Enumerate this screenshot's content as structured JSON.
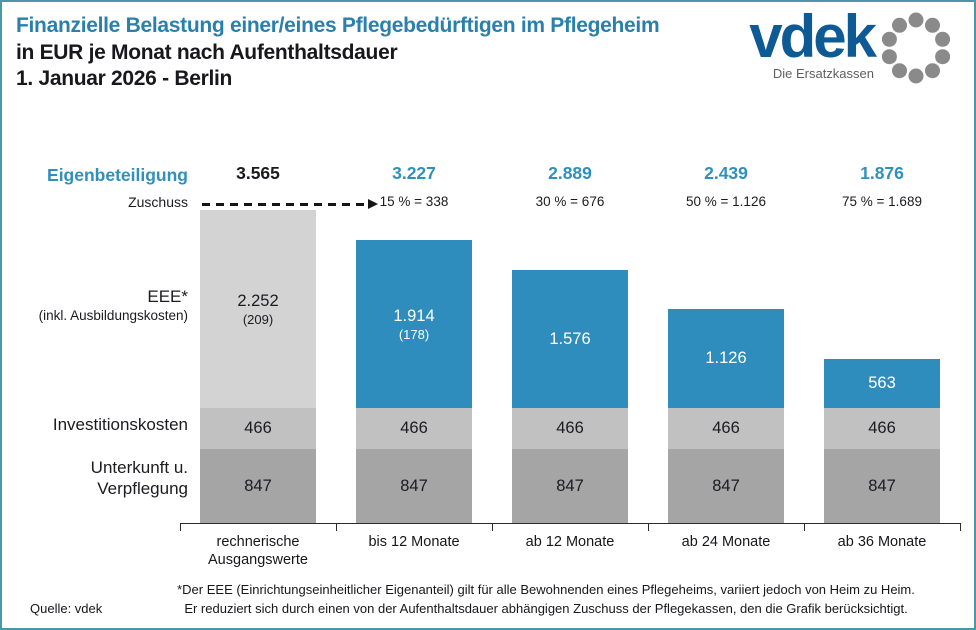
{
  "header": {
    "title_line1": "Finanzielle Belastung einer/eines Pflegebedürftigen im Pflegeheim",
    "title_line2": "in EUR je Monat nach Aufenthaltsdauer",
    "title_line3": "1. Januar 2026 - Berlin"
  },
  "logo": {
    "wordmark": "vdek",
    "tagline": "Die Ersatzkassen"
  },
  "row_labels": {
    "eigenbeteiligung": "Eigenbeteiligung",
    "zuschuss": "Zuschuss",
    "eee": "EEE*",
    "eee_sub": "(inkl. Ausbildungskosten)",
    "investitionskosten": "Investitionskosten",
    "unterkunft_line1": "Unterkunft u.",
    "unterkunft_line2": "Verpflegung"
  },
  "footer": {
    "source": "Quelle: vdek",
    "footnote_line1": "*Der EEE (Einrichtungseinheitlicher Eigenanteil) gilt für alle Bewohnenden eines Pflegeheims, variiert jedoch von Heim zu Heim.",
    "footnote_line2": "Er reduziert sich durch einen von der Aufenthaltsdauer abhängigen Zuschuss der Pflegekassen, den die Grafik berücksichtigt."
  },
  "colors": {
    "accent_blue": "#2f8dbd",
    "total_blue": "#3090bd",
    "title_blue": "#2a80ab",
    "logo_blue": "#0d5a94",
    "logo_gray": "#8a8a8a",
    "border_teal": "#4d95a8",
    "gray_eee": "#d3d3d3",
    "gray_invest": "#c1c1c1",
    "gray_unterkunft": "#a5a5a5",
    "text_dark": "#1b1b20",
    "label_white": "#ffffff"
  },
  "chart_data": {
    "type": "bar",
    "subtype": "stacked",
    "title": "Finanzielle Belastung einer/eines Pflegebedürftigen im Pflegeheim",
    "subtitle": "in EUR je Monat nach Aufenthaltsdauer, 1. Januar 2026 - Berlin",
    "unit": "EUR je Monat",
    "ylim": [
      0,
      3565
    ],
    "grid": false,
    "legend_position": "left-row-labels",
    "categories": [
      "rechnerische Ausgangswerte",
      "bis 12 Monate",
      "ab 12 Monate",
      "ab 24 Monate",
      "ab 36 Monate"
    ],
    "category_label_lines": [
      [
        "rechnerische",
        "Ausgangswerte"
      ],
      [
        "bis 12 Monate"
      ],
      [
        "ab 12 Monate"
      ],
      [
        "ab 24 Monate"
      ],
      [
        "ab 36 Monate"
      ]
    ],
    "totals": {
      "name": "Eigenbeteiligung",
      "values": [
        3565,
        3227,
        2889,
        2439,
        1876
      ],
      "labels": [
        "3.565",
        "3.227",
        "2.889",
        "2.439",
        "1.876"
      ]
    },
    "zuschuss": {
      "name": "Zuschuss",
      "percents": [
        0,
        15,
        30,
        50,
        75
      ],
      "amounts": [
        0,
        338,
        676,
        1126,
        1689
      ],
      "labels": [
        "",
        "15 % = 338",
        "30 % = 676",
        "50 % = 1.126",
        "75 % = 1.689"
      ]
    },
    "series": [
      {
        "name": "Unterkunft u. Verpflegung",
        "values": [
          847,
          847,
          847,
          847,
          847
        ],
        "labels": [
          "847",
          "847",
          "847",
          "847",
          "847"
        ],
        "sublabels": [
          "",
          "",
          "",
          "",
          ""
        ]
      },
      {
        "name": "Investitionskosten",
        "values": [
          466,
          466,
          466,
          466,
          466
        ],
        "labels": [
          "466",
          "466",
          "466",
          "466",
          "466"
        ],
        "sublabels": [
          "",
          "",
          "",
          "",
          ""
        ]
      },
      {
        "name": "EEE (inkl. Ausbildungskosten)",
        "values": [
          2252,
          1914,
          1576,
          1126,
          563
        ],
        "labels": [
          "2.252",
          "1.914",
          "1.576",
          "1.126",
          "563"
        ],
        "sublabels": [
          "(209)",
          "(178)",
          "",
          "",
          ""
        ]
      }
    ]
  }
}
